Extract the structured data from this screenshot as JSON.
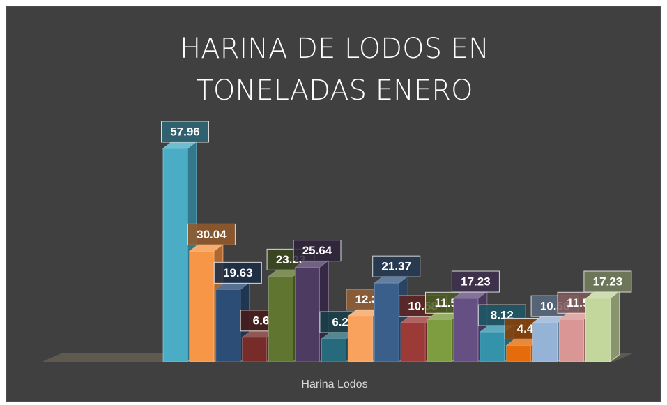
{
  "chart_data": {
    "type": "bar3d",
    "title": "HARINA DE LODOS EN TONELADAS ENERO",
    "x_label": "Harina Lodos",
    "values": [
      57.96,
      30.04,
      19.63,
      6.66,
      23.23,
      25.64,
      6.23,
      12.36,
      21.37,
      10.58,
      11.5,
      17.23,
      8.12,
      4.46,
      10.58,
      11.5,
      17.23
    ],
    "value_labels": [
      "57.96",
      "30.04",
      "19.63",
      "6.66",
      "23.23",
      "25.64",
      "6.23",
      "12.36",
      "21.37",
      "10.58",
      "11.50",
      "17.23",
      "8.12",
      "4.46",
      "10.58",
      "11.50",
      "17.23"
    ],
    "colors": [
      "#4bacc6",
      "#f79646",
      "#2c4d75",
      "#772c2a",
      "#5f7530",
      "#4d3b62",
      "#276a7c",
      "#f9a25e",
      "#3a5f8b",
      "#9c3a38",
      "#7e9c40",
      "#664f82",
      "#3492ab",
      "#e46c0a",
      "#95b3d7",
      "#d99694",
      "#c3d69b"
    ]
  }
}
